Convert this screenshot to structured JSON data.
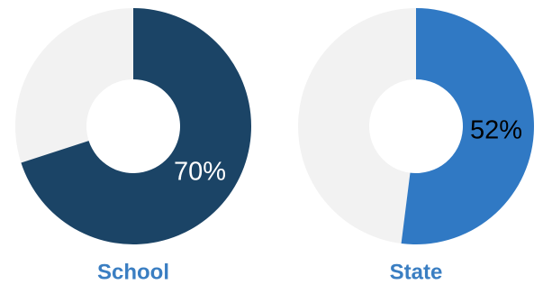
{
  "chart_data": [
    {
      "type": "pie",
      "label": "School",
      "value_label": "70%",
      "percent": 70,
      "fill_color": "#1b4466",
      "track_color": "#f2f2f2",
      "label_color": "#3a7ec2",
      "value_text_color": "#ffffff"
    },
    {
      "type": "pie",
      "label": "State",
      "value_label": "52%",
      "percent": 52,
      "fill_color": "#3079c4",
      "track_color": "#f2f2f2",
      "label_color": "#3a7ec2",
      "value_text_color": "#000000"
    }
  ]
}
